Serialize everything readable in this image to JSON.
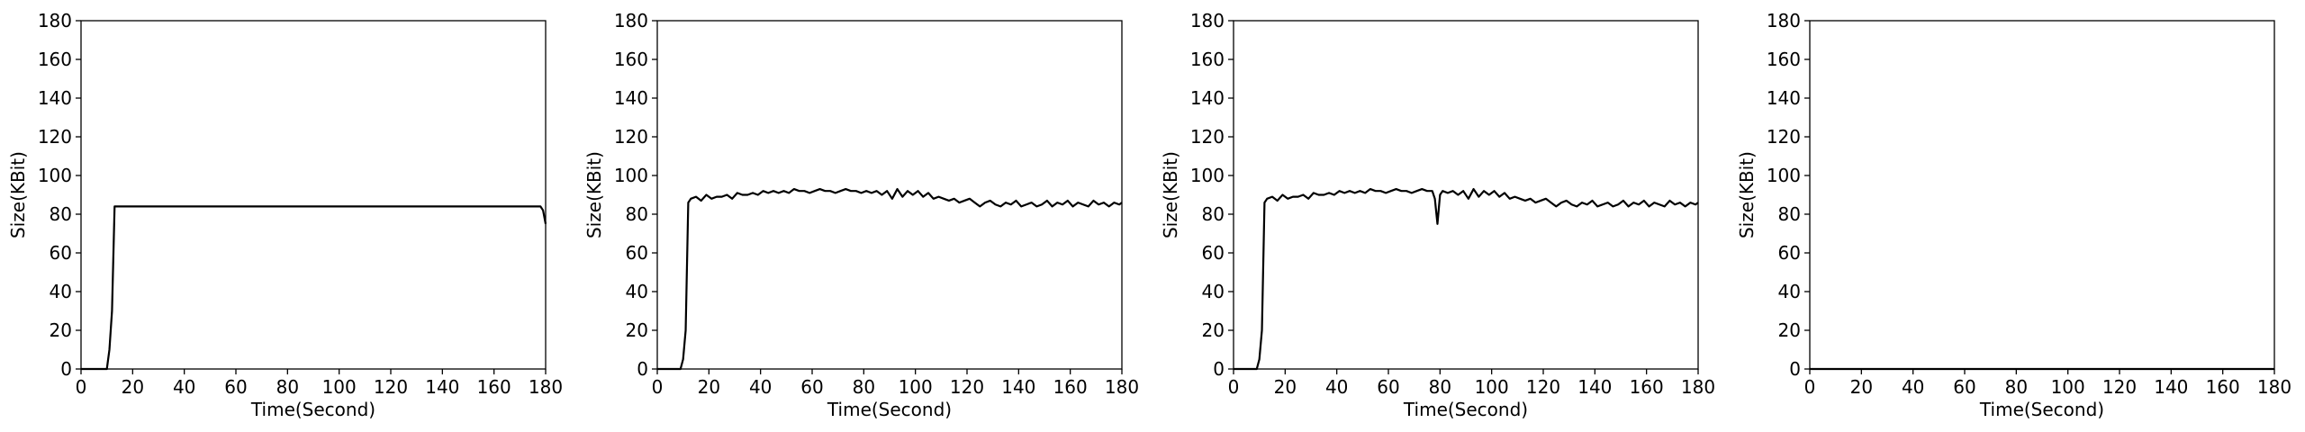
{
  "chart_data": [
    {
      "type": "line",
      "xlabel": "Time(Second)",
      "ylabel": "Size(KBit)",
      "xlim": [
        0,
        180
      ],
      "ylim": [
        0,
        180
      ],
      "xticks": [
        0,
        20,
        40,
        60,
        80,
        100,
        120,
        140,
        160,
        180
      ],
      "yticks": [
        0,
        20,
        40,
        60,
        80,
        100,
        120,
        140,
        160,
        180
      ],
      "grid": false,
      "color": "#000000",
      "series": [
        {
          "x": [
            0,
            5,
            10,
            11,
            12,
            13,
            15,
            20,
            30,
            40,
            50,
            60,
            70,
            80,
            90,
            100,
            110,
            120,
            130,
            140,
            150,
            160,
            170,
            178,
            179,
            180
          ],
          "y": [
            0,
            0,
            0,
            10,
            30,
            84,
            84,
            84,
            84,
            84,
            84,
            84,
            84,
            84,
            84,
            84,
            84,
            84,
            84,
            84,
            84,
            84,
            84,
            84,
            82,
            75
          ]
        }
      ]
    },
    {
      "type": "line",
      "xlabel": "Time(Second)",
      "ylabel": "Size(KBit)",
      "xlim": [
        0,
        180
      ],
      "ylim": [
        0,
        180
      ],
      "xticks": [
        0,
        20,
        40,
        60,
        80,
        100,
        120,
        140,
        160,
        180
      ],
      "yticks": [
        0,
        20,
        40,
        60,
        80,
        100,
        120,
        140,
        160,
        180
      ],
      "grid": false,
      "color": "#000000",
      "series": [
        {
          "x": [
            0,
            5,
            9,
            10,
            11,
            12,
            13,
            15,
            17,
            19,
            21,
            23,
            25,
            27,
            29,
            31,
            33,
            35,
            37,
            39,
            41,
            43,
            45,
            47,
            49,
            51,
            53,
            55,
            57,
            59,
            61,
            63,
            65,
            67,
            69,
            71,
            73,
            75,
            77,
            79,
            81,
            83,
            85,
            87,
            89,
            91,
            93,
            95,
            97,
            99,
            101,
            103,
            105,
            107,
            109,
            111,
            113,
            115,
            117,
            119,
            121,
            123,
            125,
            127,
            129,
            131,
            133,
            135,
            137,
            139,
            141,
            143,
            145,
            147,
            149,
            151,
            153,
            155,
            157,
            159,
            161,
            163,
            165,
            167,
            169,
            171,
            173,
            175,
            177,
            179,
            180
          ],
          "y": [
            0,
            0,
            0,
            5,
            20,
            86,
            88,
            89,
            87,
            90,
            88,
            89,
            89,
            90,
            88,
            91,
            90,
            90,
            91,
            90,
            92,
            91,
            92,
            91,
            92,
            91,
            93,
            92,
            92,
            91,
            92,
            93,
            92,
            92,
            91,
            92,
            93,
            92,
            92,
            91,
            92,
            91,
            92,
            90,
            92,
            88,
            93,
            89,
            92,
            90,
            92,
            89,
            91,
            88,
            89,
            88,
            87,
            88,
            86,
            87,
            88,
            86,
            84,
            86,
            87,
            85,
            84,
            86,
            85,
            87,
            84,
            85,
            86,
            84,
            85,
            87,
            84,
            86,
            85,
            87,
            84,
            86,
            85,
            84,
            87,
            85,
            86,
            84,
            86,
            85,
            86
          ]
        }
      ]
    },
    {
      "type": "line",
      "xlabel": "Time(Second)",
      "ylabel": "Size(KBit)",
      "xlim": [
        0,
        180
      ],
      "ylim": [
        0,
        180
      ],
      "xticks": [
        0,
        20,
        40,
        60,
        80,
        100,
        120,
        140,
        160,
        180
      ],
      "yticks": [
        0,
        20,
        40,
        60,
        80,
        100,
        120,
        140,
        160,
        180
      ],
      "grid": false,
      "color": "#000000",
      "series": [
        {
          "x": [
            0,
            5,
            9,
            10,
            11,
            12,
            13,
            15,
            17,
            19,
            21,
            23,
            25,
            27,
            29,
            31,
            33,
            35,
            37,
            39,
            41,
            43,
            45,
            47,
            49,
            51,
            53,
            55,
            57,
            59,
            61,
            63,
            65,
            67,
            69,
            71,
            73,
            75,
            77,
            78,
            79,
            80,
            81,
            83,
            85,
            87,
            89,
            91,
            93,
            95,
            97,
            99,
            101,
            103,
            105,
            107,
            109,
            111,
            113,
            115,
            117,
            119,
            121,
            123,
            125,
            127,
            129,
            131,
            133,
            135,
            137,
            139,
            141,
            143,
            145,
            147,
            149,
            151,
            153,
            155,
            157,
            159,
            161,
            163,
            165,
            167,
            169,
            171,
            173,
            175,
            177,
            179,
            180
          ],
          "y": [
            0,
            0,
            0,
            5,
            20,
            86,
            88,
            89,
            87,
            90,
            88,
            89,
            89,
            90,
            88,
            91,
            90,
            90,
            91,
            90,
            92,
            91,
            92,
            91,
            92,
            91,
            93,
            92,
            92,
            91,
            92,
            93,
            92,
            92,
            91,
            92,
            93,
            92,
            92,
            88,
            75,
            90,
            92,
            91,
            92,
            90,
            92,
            88,
            93,
            89,
            92,
            90,
            92,
            89,
            91,
            88,
            89,
            88,
            87,
            88,
            86,
            87,
            88,
            86,
            84,
            86,
            87,
            85,
            84,
            86,
            85,
            87,
            84,
            85,
            86,
            84,
            85,
            87,
            84,
            86,
            85,
            87,
            84,
            86,
            85,
            84,
            87,
            85,
            86,
            84,
            86,
            85,
            86
          ]
        }
      ]
    },
    {
      "type": "line",
      "xlabel": "Time(Second)",
      "ylabel": "Size(KBit)",
      "xlim": [
        0,
        180
      ],
      "ylim": [
        0,
        180
      ],
      "xticks": [
        0,
        20,
        40,
        60,
        80,
        100,
        120,
        140,
        160,
        180
      ],
      "yticks": [
        0,
        20,
        40,
        60,
        80,
        100,
        120,
        140,
        160,
        180
      ],
      "grid": false,
      "color": "#000000",
      "series": [
        {
          "x": [
            0,
            20,
            40,
            60,
            80,
            100,
            120,
            140,
            160,
            180
          ],
          "y": [
            0,
            0,
            0,
            0,
            0,
            0,
            0,
            0,
            0,
            0
          ]
        }
      ]
    }
  ]
}
